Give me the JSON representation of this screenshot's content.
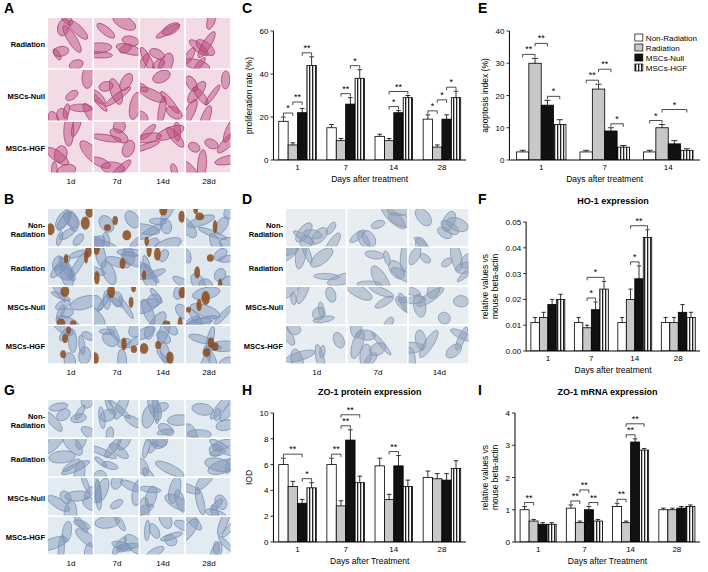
{
  "image_panels": [
    {
      "panel": "A",
      "row_labels": [
        "Radiation",
        "MSCs-Null",
        "MSCs-HGF"
      ],
      "column_labels": [
        "1d",
        "7d",
        "14d",
        "28d"
      ],
      "colors": [
        "#f3dbe6",
        "#b5467a"
      ]
    },
    {
      "panel": "B",
      "row_labels": [
        "Non-Radiation",
        "Radiation",
        "MSCs-Null",
        "MSCs-HGF"
      ],
      "column_labels": [
        "1d",
        "7d",
        "14d",
        "28d"
      ],
      "colors": [
        "#dfe7ee",
        "#7d93b8",
        "#8a4a1c"
      ]
    },
    {
      "panel": "D",
      "row_labels": [
        "Non-Radiation",
        "Radiation",
        "MSCs-Null",
        "MSCs-HGF"
      ],
      "column_labels": [
        "1d",
        "7d",
        "14d"
      ],
      "colors": [
        "#e8edf2",
        "#8a9bb5"
      ]
    },
    {
      "panel": "G",
      "row_labels": [
        "Non-Radiation",
        "Radiation",
        "MSCs-Null",
        "MSCs-HGF"
      ],
      "column_labels": [
        "1d",
        "7d",
        "14d",
        "28d"
      ],
      "colors": [
        "#e3ebf2",
        "#7f96b6"
      ]
    }
  ],
  "chart_data": [
    {
      "panel": "C",
      "type": "bar",
      "y_label": "proliferation rate (%)",
      "x_label": "Days after treatment",
      "categories": [
        "1",
        "7",
        "14",
        "28"
      ],
      "series": [
        {
          "name": "Non-Radiation",
          "color": "#ffffff",
          "values": [
            18,
            15,
            11,
            19
          ],
          "errors": [
            2,
            1.5,
            1,
            2
          ]
        },
        {
          "name": "Radiation",
          "color": "#c8c8c8",
          "values": [
            7,
            9,
            9,
            6
          ],
          "errors": [
            1,
            1,
            1,
            1
          ]
        },
        {
          "name": "MSCs-Null",
          "color": "#111111",
          "values": [
            22,
            26,
            22,
            19
          ],
          "errors": [
            2,
            3,
            1,
            2
          ]
        },
        {
          "name": "MSCs-HGF",
          "color": "#222222",
          "values": [
            44,
            38,
            29,
            29
          ],
          "errors": [
            4,
            4,
            1,
            3
          ]
        }
      ],
      "ylim": [
        0,
        60
      ],
      "yticks": [
        0,
        20,
        40,
        60
      ],
      "grid": false,
      "significance": [
        {
          "category": "1",
          "between": [
            "Non-Radiation",
            "Radiation"
          ],
          "label": "*"
        },
        {
          "category": "1",
          "between": [
            "Radiation",
            "MSCs-Null"
          ],
          "label": "**"
        },
        {
          "category": "1",
          "between": [
            "MSCs-Null",
            "MSCs-HGF"
          ],
          "label": "**"
        },
        {
          "category": "7",
          "between": [
            "Radiation",
            "MSCs-Null"
          ],
          "label": "**"
        },
        {
          "category": "7",
          "between": [
            "MSCs-Null",
            "MSCs-HGF"
          ],
          "label": "*"
        },
        {
          "category": "14",
          "between": [
            "Radiation",
            "MSCs-Null"
          ],
          "label": "*"
        },
        {
          "category": "14",
          "between": [
            "Radiation",
            "MSCs-HGF"
          ],
          "label": "**"
        },
        {
          "category": "28",
          "between": [
            "Non-Radiation",
            "Radiation"
          ],
          "label": "*"
        },
        {
          "category": "28",
          "between": [
            "Radiation",
            "MSCs-Null"
          ],
          "label": "*"
        },
        {
          "category": "28",
          "between": [
            "MSCs-Null",
            "MSCs-HGF"
          ],
          "label": "*"
        }
      ]
    },
    {
      "panel": "E",
      "type": "bar",
      "y_label": "apoptosis index (%)",
      "x_label": "Days after treatment",
      "categories": [
        "1",
        "7",
        "14"
      ],
      "series": [
        {
          "name": "Non-Radiation",
          "color": "#ffffff",
          "values": [
            2.5,
            2.5,
            2.5
          ],
          "errors": [
            0.5,
            0.5,
            0.5
          ]
        },
        {
          "name": "Radiation",
          "color": "#c8c8c8",
          "values": [
            30,
            22,
            10
          ],
          "errors": [
            1.5,
            1.5,
            1
          ]
        },
        {
          "name": "MSCs-Null",
          "color": "#111111",
          "values": [
            17,
            9,
            5
          ],
          "errors": [
            1.5,
            1,
            1
          ]
        },
        {
          "name": "MSCs-HGF",
          "color": "#222222",
          "values": [
            11,
            4,
            3
          ],
          "errors": [
            1.5,
            0.5,
            0.5
          ]
        }
      ],
      "ylim": [
        0,
        40
      ],
      "yticks": [
        0,
        10,
        20,
        30,
        40
      ],
      "grid": false,
      "legend": "top-right",
      "significance": [
        {
          "category": "1",
          "between": [
            "Non-Radiation",
            "Radiation"
          ],
          "label": "**"
        },
        {
          "category": "1",
          "between": [
            "Radiation",
            "MSCs-Null"
          ],
          "label": "**"
        },
        {
          "category": "1",
          "between": [
            "MSCs-Null",
            "MSCs-HGF"
          ],
          "label": "*"
        },
        {
          "category": "7",
          "between": [
            "Non-Radiation",
            "Radiation"
          ],
          "label": "**"
        },
        {
          "category": "7",
          "between": [
            "Radiation",
            "MSCs-Null"
          ],
          "label": "**"
        },
        {
          "category": "7",
          "between": [
            "MSCs-Null",
            "MSCs-HGF"
          ],
          "label": "*"
        },
        {
          "category": "14",
          "between": [
            "Non-Radiation",
            "Radiation"
          ],
          "label": "*"
        },
        {
          "category": "14",
          "between": [
            "Radiation",
            "MSCs-HGF"
          ],
          "label": "*"
        }
      ]
    },
    {
      "panel": "F",
      "type": "bar",
      "title": "HO-1 expression",
      "y_label": "relative values vs mouse beta-actin",
      "x_label": "Days after treatment",
      "categories": [
        "1",
        "7",
        "14",
        "28"
      ],
      "series": [
        {
          "name": "Non-Radiation",
          "color": "#ffffff",
          "values": [
            0.011,
            0.011,
            0.011,
            0.011
          ],
          "errors": [
            0.002,
            0.002,
            0.002,
            0.002
          ]
        },
        {
          "name": "Radiation",
          "color": "#c8c8c8",
          "values": [
            0.013,
            0.009,
            0.02,
            0.011
          ],
          "errors": [
            0.002,
            0.001,
            0.004,
            0.002
          ]
        },
        {
          "name": "MSCs-Null",
          "color": "#111111",
          "values": [
            0.018,
            0.016,
            0.028,
            0.015
          ],
          "errors": [
            0.002,
            0.003,
            0.005,
            0.003
          ]
        },
        {
          "name": "MSCs-HGF",
          "color": "#222222",
          "values": [
            0.02,
            0.024,
            0.044,
            0.013
          ],
          "errors": [
            0.002,
            0.003,
            0.003,
            0.002
          ]
        }
      ],
      "ylim": [
        0,
        0.05
      ],
      "yticks": [
        {
          "value": 0,
          "label": "0.00"
        },
        0.01,
        0.02,
        0.03,
        0.04,
        0.05
      ],
      "grid": false,
      "significance": [
        {
          "category": "7",
          "between": [
            "Radiation",
            "MSCs-Null"
          ],
          "label": "*"
        },
        {
          "category": "7",
          "between": [
            "Radiation",
            "MSCs-HGF"
          ],
          "label": "*"
        },
        {
          "category": "14",
          "between": [
            "Radiation",
            "MSCs-Null"
          ],
          "label": "*"
        },
        {
          "category": "14",
          "between": [
            "Radiation",
            "MSCs-HGF"
          ],
          "label": "**"
        }
      ]
    },
    {
      "panel": "H",
      "type": "bar",
      "title": "ZO-1 protein expression",
      "y_label": "IOD",
      "x_label": "Days after Treatment",
      "categories": [
        "1",
        "7",
        "14",
        "28"
      ],
      "series": [
        {
          "name": "Non-Radiation",
          "color": "#ffffff",
          "values": [
            6,
            6,
            5.9,
            5
          ],
          "errors": [
            0.5,
            0.5,
            0.6,
            0.5
          ]
        },
        {
          "name": "Radiation",
          "color": "#c8c8c8",
          "values": [
            4.3,
            2.8,
            3.3,
            4.9
          ],
          "errors": [
            0.4,
            0.4,
            0.4,
            0.4
          ]
        },
        {
          "name": "MSCs-Null",
          "color": "#111111",
          "values": [
            3,
            7.9,
            5.9,
            4.8
          ],
          "errors": [
            0.3,
            0.8,
            0.8,
            0.5
          ]
        },
        {
          "name": "MSCs-HGF",
          "color": "#222222",
          "values": [
            4.2,
            4.6,
            4.3,
            5.7
          ],
          "errors": [
            0.4,
            0.5,
            0.5,
            0.6
          ]
        }
      ],
      "ylim": [
        0,
        10
      ],
      "yticks": [
        0,
        2,
        4,
        6,
        8,
        10
      ],
      "grid": false,
      "significance": [
        {
          "category": "1",
          "between": [
            "Non-Radiation",
            "MSCs-Null"
          ],
          "label": "**"
        },
        {
          "category": "1",
          "between": [
            "MSCs-Null",
            "MSCs-HGF"
          ],
          "label": "*"
        },
        {
          "category": "7",
          "between": [
            "Non-Radiation",
            "Radiation"
          ],
          "label": "**"
        },
        {
          "category": "7",
          "between": [
            "Radiation",
            "MSCs-Null"
          ],
          "label": "**"
        },
        {
          "category": "7",
          "between": [
            "Radiation",
            "MSCs-HGF"
          ],
          "label": "**"
        },
        {
          "category": "14",
          "between": [
            "Radiation",
            "MSCs-Null"
          ],
          "label": "**"
        }
      ]
    },
    {
      "panel": "I",
      "type": "bar",
      "title": "ZO-1 mRNA expression",
      "y_label": "relative values vs mouse beta-actin",
      "x_label": "Days after Treatment",
      "categories": [
        "1",
        "7",
        "14",
        "28"
      ],
      "series": [
        {
          "name": "Non-Radiation",
          "color": "#ffffff",
          "values": [
            1,
            1.05,
            1.1,
            1
          ],
          "errors": [
            0.1,
            0.1,
            0.1,
            0.05
          ]
        },
        {
          "name": "Radiation",
          "color": "#c8c8c8",
          "values": [
            0.65,
            0.6,
            0.6,
            1
          ],
          "errors": [
            0.05,
            0.05,
            0.05,
            0.05
          ]
        },
        {
          "name": "MSCs-Null",
          "color": "#111111",
          "values": [
            0.55,
            1,
            3.1,
            1.05
          ],
          "errors": [
            0.05,
            0.1,
            0.1,
            0.05
          ]
        },
        {
          "name": "MSCs-HGF",
          "color": "#222222",
          "values": [
            0.55,
            0.65,
            2.85,
            1.1
          ],
          "errors": [
            0.05,
            0.05,
            0.05,
            0.05
          ]
        }
      ],
      "ylim": [
        0,
        4
      ],
      "yticks": [
        0,
        1,
        2,
        3,
        4
      ],
      "grid": false,
      "significance": [
        {
          "category": "1",
          "between": [
            "Non-Radiation",
            "Radiation"
          ],
          "label": "**"
        },
        {
          "category": "7",
          "between": [
            "Non-Radiation",
            "Radiation"
          ],
          "label": "**"
        },
        {
          "category": "7",
          "between": [
            "Radiation",
            "MSCs-Null"
          ],
          "label": "**"
        },
        {
          "category": "7",
          "between": [
            "MSCs-Null",
            "MSCs-HGF"
          ],
          "label": "**"
        },
        {
          "category": "14",
          "between": [
            "Non-Radiation",
            "Radiation"
          ],
          "label": "**"
        },
        {
          "category": "14",
          "between": [
            "Radiation",
            "MSCs-Null"
          ],
          "label": "**"
        },
        {
          "category": "14",
          "between": [
            "Radiation",
            "MSCs-HGF"
          ],
          "label": "**"
        }
      ]
    }
  ]
}
